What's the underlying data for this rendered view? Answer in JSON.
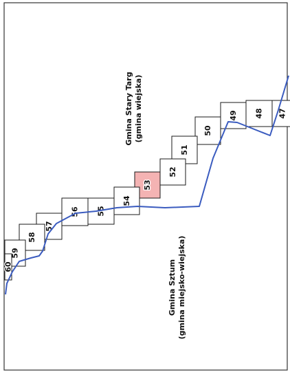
{
  "map": {
    "regions": [
      {
        "id": "stary-targ",
        "line1": "Gmina Stary Targ",
        "line2": "(gmina wiejska)"
      },
      {
        "id": "sztum",
        "line1": "Gmina Sztum",
        "line2": "(gmina miejsko-wiejska)"
      }
    ],
    "sheets": [
      {
        "number": "47",
        "highlighted": false
      },
      {
        "number": "48",
        "highlighted": false
      },
      {
        "number": "49",
        "highlighted": false
      },
      {
        "number": "50",
        "highlighted": false
      },
      {
        "number": "51",
        "highlighted": false
      },
      {
        "number": "52",
        "highlighted": false
      },
      {
        "number": "53",
        "highlighted": true
      },
      {
        "number": "54",
        "highlighted": false
      },
      {
        "number": "55",
        "highlighted": false
      },
      {
        "number": "56",
        "highlighted": false
      },
      {
        "number": "57",
        "highlighted": false
      },
      {
        "number": "58",
        "highlighted": false
      },
      {
        "number": "59",
        "highlighted": false
      },
      {
        "number": "60",
        "highlighted": false
      }
    ],
    "colors": {
      "boundary": "#3a5bbf",
      "highlight": "#f4b3b3",
      "sheet_border": "#1a1a1a"
    }
  }
}
